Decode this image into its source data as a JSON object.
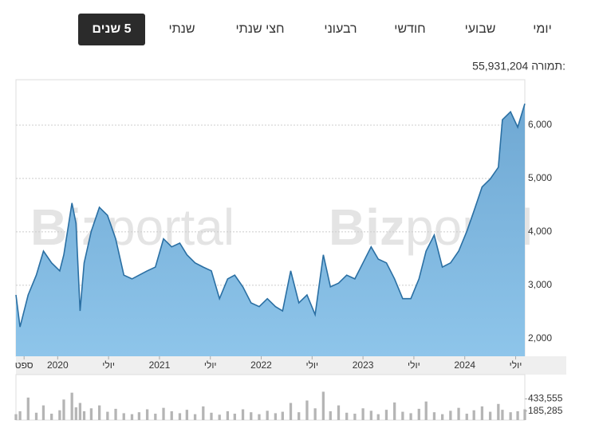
{
  "tabs": [
    "יומי",
    "שבועי",
    "חודשי",
    "רבעוני",
    "חצי שנתי",
    "שנתי",
    "5 שנים"
  ],
  "active_tab": 6,
  "turnover_label": "תמורה:",
  "turnover_value": "55,931,204",
  "watermark_bold": "Biz",
  "watermark_light": "portal",
  "chart_data": [
    {
      "type": "area",
      "color": "#2a6fa3",
      "fill": "#8ec5ea",
      "grid": true,
      "x": [
        2019.59,
        2019.63,
        2019.71,
        2019.79,
        2019.86,
        2019.94,
        2020.02,
        2020.06,
        2020.14,
        2020.18,
        2020.22,
        2020.26,
        2020.33,
        2020.41,
        2020.49,
        2020.57,
        2020.65,
        2020.73,
        2020.8,
        2020.88,
        2020.96,
        2021.04,
        2021.12,
        2021.2,
        2021.27,
        2021.35,
        2021.43,
        2021.51,
        2021.59,
        2021.67,
        2021.74,
        2021.82,
        2021.9,
        2021.98,
        2022.06,
        2022.14,
        2022.21,
        2022.29,
        2022.37,
        2022.45,
        2022.53,
        2022.61,
        2022.68,
        2022.76,
        2022.84,
        2022.92,
        2023.0,
        2023.08,
        2023.15,
        2023.23,
        2023.31,
        2023.39,
        2023.47,
        2023.55,
        2023.62,
        2023.7,
        2023.78,
        2023.86,
        2023.94,
        2024.02,
        2024.09,
        2024.17,
        2024.25,
        2024.33,
        2024.37,
        2024.45,
        2024.52,
        2024.59
      ],
      "values": [
        2820,
        2220,
        2820,
        3190,
        3640,
        3420,
        3270,
        3570,
        4540,
        4160,
        2520,
        3420,
        4010,
        4460,
        4310,
        3870,
        3190,
        3120,
        3190,
        3270,
        3340,
        3870,
        3720,
        3790,
        3570,
        3420,
        3340,
        3270,
        2750,
        3120,
        3190,
        2970,
        2670,
        2600,
        2750,
        2600,
        2520,
        3270,
        2670,
        2820,
        2450,
        3570,
        2970,
        3040,
        3190,
        3120,
        3420,
        3720,
        3490,
        3420,
        3120,
        2750,
        2750,
        3120,
        3640,
        3940,
        3340,
        3420,
        3640,
        4010,
        4390,
        4840,
        4990,
        5210,
        6100,
        6250,
        5960,
        6400
      ],
      "xlim": [
        2019.59,
        2024.59
      ],
      "xticks": [
        {
          "value": 2019.67,
          "label": "ספט"
        },
        2020,
        {
          "value": 2020.5,
          "label": "יולי"
        },
        2021,
        {
          "value": 2021.5,
          "label": "יולי"
        },
        2022,
        {
          "value": 2022.5,
          "label": "יולי"
        },
        2023,
        {
          "value": 2023.5,
          "label": "יולי"
        },
        2024,
        {
          "value": 2024.5,
          "label": "יולי"
        }
      ],
      "ylim": [
        1670,
        6850
      ],
      "yticks": [
        {
          "value": 2000,
          "label": "2,000"
        },
        {
          "value": 3000,
          "label": "3,000"
        },
        {
          "value": 4000,
          "label": "4,000"
        },
        {
          "value": 5000,
          "label": "5,000"
        },
        {
          "value": 6000,
          "label": "6,000"
        }
      ]
    },
    {
      "type": "bar",
      "color": "#b5b5b5",
      "x": [
        2019.59,
        2019.63,
        2019.71,
        2019.79,
        2019.86,
        2019.94,
        2020.02,
        2020.06,
        2020.14,
        2020.18,
        2020.22,
        2020.26,
        2020.33,
        2020.41,
        2020.49,
        2020.57,
        2020.65,
        2020.73,
        2020.8,
        2020.88,
        2020.96,
        2021.04,
        2021.12,
        2021.2,
        2021.27,
        2021.35,
        2021.43,
        2021.51,
        2021.59,
        2021.67,
        2021.74,
        2021.82,
        2021.9,
        2021.98,
        2022.06,
        2022.14,
        2022.21,
        2022.29,
        2022.37,
        2022.45,
        2022.53,
        2022.61,
        2022.68,
        2022.76,
        2022.84,
        2022.92,
        2023.0,
        2023.08,
        2023.15,
        2023.23,
        2023.31,
        2023.39,
        2023.47,
        2023.55,
        2023.62,
        2023.7,
        2023.78,
        2023.86,
        2023.94,
        2024.02,
        2024.09,
        2024.17,
        2024.25,
        2024.33,
        2024.37,
        2024.45,
        2024.52,
        2024.59
      ],
      "values": [
        120000,
        180000,
        460000,
        150000,
        300000,
        130000,
        200000,
        420000,
        560000,
        260000,
        350000,
        180000,
        240000,
        300000,
        170000,
        230000,
        140000,
        120000,
        160000,
        220000,
        130000,
        250000,
        180000,
        140000,
        210000,
        120000,
        280000,
        150000,
        110000,
        180000,
        130000,
        220000,
        160000,
        120000,
        190000,
        140000,
        170000,
        350000,
        160000,
        400000,
        240000,
        580000,
        180000,
        300000,
        150000,
        130000,
        240000,
        190000,
        120000,
        210000,
        360000,
        170000,
        140000,
        230000,
        380000,
        160000,
        120000,
        190000,
        250000,
        130000,
        200000,
        280000,
        170000,
        330000,
        210000,
        160000,
        180000,
        220000
      ],
      "xlim": [
        2019.59,
        2024.59
      ],
      "ylim": [
        0,
        930000
      ],
      "yticks": [
        {
          "value": 185285,
          "label": "185,285"
        },
        {
          "value": 433555,
          "label": "433,555"
        }
      ]
    }
  ]
}
